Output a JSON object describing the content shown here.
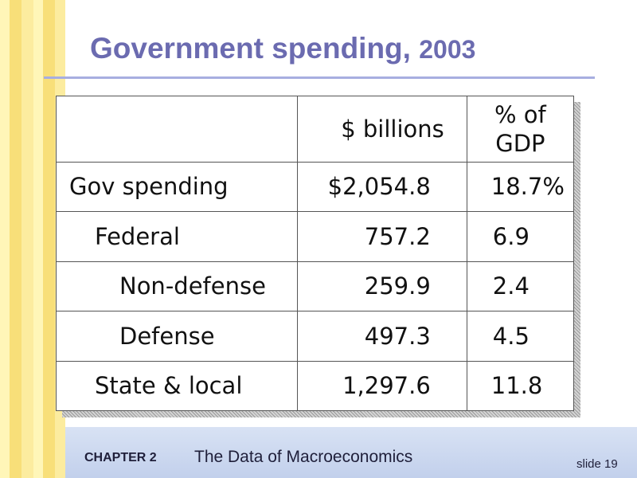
{
  "title": {
    "text": "Government spending,",
    "year": "2003"
  },
  "table": {
    "headers": [
      "",
      "$ billions",
      "% of GDP"
    ],
    "rows": [
      {
        "label": "Gov spending",
        "billions": "$2,054.8",
        "pct_gdp": "18.7%"
      },
      {
        "label": "Federal",
        "billions": "757.2",
        "pct_gdp": "6.9"
      },
      {
        "label": "Non-defense",
        "billions": "259.9",
        "pct_gdp": "2.4"
      },
      {
        "label": "Defense",
        "billions": "497.3",
        "pct_gdp": "4.5"
      },
      {
        "label": "State & local",
        "billions": "1,297.6",
        "pct_gdp": "11.8"
      }
    ]
  },
  "footer": {
    "chapter": "CHAPTER 2",
    "chapter_title": "The Data of Macroeconomics",
    "slide": "slide 19"
  },
  "colors": {
    "title": "#6b6bb0",
    "rule": "#a7aee0",
    "stripe_light": "#fff6b8",
    "stripe_dark": "#f8df79",
    "footer_bg": "#c2d0ec"
  }
}
